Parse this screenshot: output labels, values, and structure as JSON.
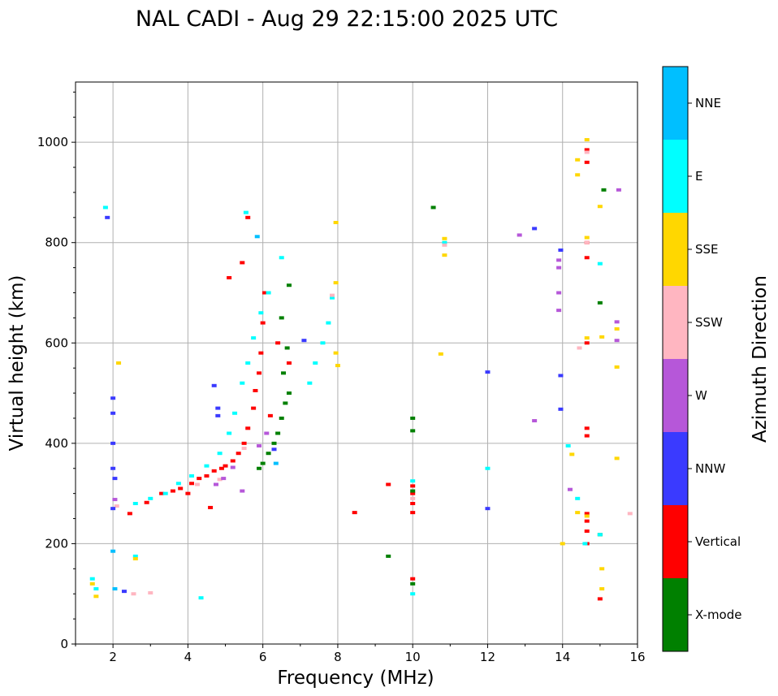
{
  "chart_data": {
    "type": "scatter",
    "title": "NAL CADI - Aug 29 22:15:00 2025 UTC",
    "xlabel": "Frequency (MHz)",
    "ylabel": "Virtual height (km)",
    "xlim": [
      1,
      16
    ],
    "ylim": [
      0,
      1120
    ],
    "xticks": [
      "2",
      "4",
      "6",
      "8",
      "10",
      "12",
      "14",
      "16"
    ],
    "yticks": [
      "0",
      "200",
      "400",
      "600",
      "800",
      "1000"
    ],
    "grid": true,
    "colorbar": {
      "label": "Azimuth Direction",
      "categories": [
        {
          "name": "NNE",
          "color": "#00bfff"
        },
        {
          "name": "E",
          "color": "#00ffff"
        },
        {
          "name": "SSE",
          "color": "#ffd700"
        },
        {
          "name": "SSW",
          "color": "#ffb6c1"
        },
        {
          "name": "W",
          "color": "#b657d9"
        },
        {
          "name": "NNW",
          "color": "#3a3aff"
        },
        {
          "name": "Vertical",
          "color": "#ff0000"
        },
        {
          "name": "X-mode",
          "color": "#008000"
        }
      ]
    },
    "series": [
      {
        "name": "Vertical",
        "points": [
          [
            2.45,
            260
          ],
          [
            2.9,
            282
          ],
          [
            3.3,
            300
          ],
          [
            3.6,
            305
          ],
          [
            3.8,
            310
          ],
          [
            4.0,
            300
          ],
          [
            4.1,
            320
          ],
          [
            4.3,
            330
          ],
          [
            4.5,
            335
          ],
          [
            4.7,
            345
          ],
          [
            4.9,
            350
          ],
          [
            5.0,
            355
          ],
          [
            5.2,
            365
          ],
          [
            5.35,
            380
          ],
          [
            5.5,
            400
          ],
          [
            5.6,
            430
          ],
          [
            5.75,
            470
          ],
          [
            5.8,
            505
          ],
          [
            5.9,
            540
          ],
          [
            5.95,
            580
          ],
          [
            6.0,
            640
          ],
          [
            6.05,
            700
          ],
          [
            5.45,
            760
          ],
          [
            5.6,
            850
          ],
          [
            5.1,
            730
          ],
          [
            4.6,
            272
          ],
          [
            10.0,
            130
          ],
          [
            10.0,
            262
          ],
          [
            10.0,
            280
          ],
          [
            10.0,
            300
          ],
          [
            10.0,
            315
          ],
          [
            9.35,
            318
          ],
          [
            8.45,
            262
          ],
          [
            14.65,
            200
          ],
          [
            14.65,
            225
          ],
          [
            14.65,
            245
          ],
          [
            14.65,
            260
          ],
          [
            14.65,
            415
          ],
          [
            14.65,
            430
          ],
          [
            14.65,
            600
          ],
          [
            14.65,
            770
          ],
          [
            14.65,
            800
          ],
          [
            14.65,
            960
          ],
          [
            14.65,
            985
          ],
          [
            15.0,
            90
          ],
          [
            6.2,
            455
          ],
          [
            6.7,
            560
          ],
          [
            6.4,
            600
          ]
        ]
      },
      {
        "name": "X-mode",
        "points": [
          [
            5.9,
            350
          ],
          [
            6.0,
            360
          ],
          [
            6.15,
            380
          ],
          [
            6.3,
            400
          ],
          [
            6.4,
            420
          ],
          [
            6.5,
            450
          ],
          [
            6.6,
            480
          ],
          [
            6.7,
            500
          ],
          [
            6.55,
            540
          ],
          [
            6.65,
            590
          ],
          [
            6.5,
            650
          ],
          [
            6.7,
            715
          ],
          [
            10.0,
            425
          ],
          [
            10.0,
            450
          ],
          [
            10.0,
            305
          ],
          [
            10.0,
            120
          ],
          [
            9.35,
            175
          ],
          [
            10.55,
            870
          ],
          [
            15.0,
            680
          ],
          [
            15.0,
            218
          ],
          [
            15.1,
            905
          ]
        ]
      },
      {
        "name": "E",
        "points": [
          [
            2.6,
            280
          ],
          [
            3.0,
            290
          ],
          [
            3.4,
            300
          ],
          [
            3.75,
            320
          ],
          [
            4.1,
            335
          ],
          [
            4.5,
            355
          ],
          [
            4.85,
            380
          ],
          [
            5.1,
            420
          ],
          [
            5.25,
            460
          ],
          [
            5.45,
            520
          ],
          [
            5.6,
            560
          ],
          [
            5.75,
            610
          ],
          [
            5.95,
            660
          ],
          [
            6.15,
            700
          ],
          [
            6.5,
            770
          ],
          [
            7.25,
            520
          ],
          [
            7.4,
            560
          ],
          [
            7.6,
            600
          ],
          [
            7.75,
            640
          ],
          [
            7.85,
            690
          ],
          [
            1.55,
            110
          ],
          [
            1.45,
            130
          ],
          [
            4.35,
            92
          ],
          [
            10.0,
            100
          ],
          [
            12.0,
            350
          ],
          [
            14.4,
            290
          ],
          [
            14.6,
            200
          ],
          [
            15.0,
            218
          ],
          [
            14.15,
            395
          ],
          [
            1.8,
            870
          ],
          [
            2.6,
            175
          ],
          [
            10.0,
            325
          ],
          [
            10.85,
            800
          ],
          [
            15.0,
            758
          ],
          [
            5.55,
            860
          ]
        ]
      },
      {
        "name": "SSE",
        "points": [
          [
            1.55,
            95
          ],
          [
            1.45,
            120
          ],
          [
            2.6,
            170
          ],
          [
            2.15,
            560
          ],
          [
            7.95,
            840
          ],
          [
            7.95,
            720
          ],
          [
            7.95,
            580
          ],
          [
            8.0,
            555
          ],
          [
            10.75,
            578
          ],
          [
            10.85,
            775
          ],
          [
            10.85,
            808
          ],
          [
            14.0,
            200
          ],
          [
            14.25,
            378
          ],
          [
            14.4,
            262
          ],
          [
            14.4,
            935
          ],
          [
            14.4,
            965
          ],
          [
            14.65,
            255
          ],
          [
            14.65,
            610
          ],
          [
            14.65,
            810
          ],
          [
            14.65,
            1005
          ],
          [
            15.05,
            110
          ],
          [
            15.05,
            150
          ],
          [
            15.05,
            612
          ],
          [
            15.0,
            872
          ],
          [
            15.45,
            370
          ],
          [
            15.45,
            552
          ],
          [
            15.45,
            628
          ]
        ]
      },
      {
        "name": "SSW",
        "points": [
          [
            2.1,
            275
          ],
          [
            2.55,
            100
          ],
          [
            3.0,
            102
          ],
          [
            4.25,
            318
          ],
          [
            4.85,
            328
          ],
          [
            5.5,
            390
          ],
          [
            7.85,
            695
          ],
          [
            10.0,
            290
          ],
          [
            10.85,
            795
          ],
          [
            14.65,
            800
          ],
          [
            14.65,
            980
          ],
          [
            14.45,
            590
          ],
          [
            15.8,
            260
          ]
        ]
      },
      {
        "name": "W",
        "points": [
          [
            4.75,
            318
          ],
          [
            4.95,
            330
          ],
          [
            5.2,
            352
          ],
          [
            5.45,
            305
          ],
          [
            5.9,
            395
          ],
          [
            6.1,
            420
          ],
          [
            2.05,
            288
          ],
          [
            12.85,
            815
          ],
          [
            13.25,
            445
          ],
          [
            13.9,
            665
          ],
          [
            13.9,
            700
          ],
          [
            13.9,
            750
          ],
          [
            13.9,
            765
          ],
          [
            14.2,
            308
          ],
          [
            15.45,
            605
          ],
          [
            15.45,
            642
          ],
          [
            15.5,
            905
          ]
        ]
      },
      {
        "name": "NNW",
        "points": [
          [
            2.0,
            270
          ],
          [
            2.0,
            400
          ],
          [
            2.0,
            460
          ],
          [
            2.0,
            490
          ],
          [
            2.0,
            350
          ],
          [
            2.05,
            330
          ],
          [
            1.85,
            850
          ],
          [
            4.8,
            455
          ],
          [
            4.8,
            470
          ],
          [
            4.7,
            515
          ],
          [
            6.3,
            388
          ],
          [
            12.0,
            270
          ],
          [
            12.0,
            542
          ],
          [
            13.95,
            468
          ],
          [
            13.95,
            535
          ],
          [
            13.95,
            785
          ],
          [
            13.25,
            828
          ],
          [
            2.3,
            105
          ],
          [
            7.1,
            605
          ]
        ]
      },
      {
        "name": "NNE",
        "points": [
          [
            2.05,
            110
          ],
          [
            2.0,
            185
          ],
          [
            5.85,
            812
          ],
          [
            6.35,
            360
          ]
        ]
      }
    ]
  }
}
